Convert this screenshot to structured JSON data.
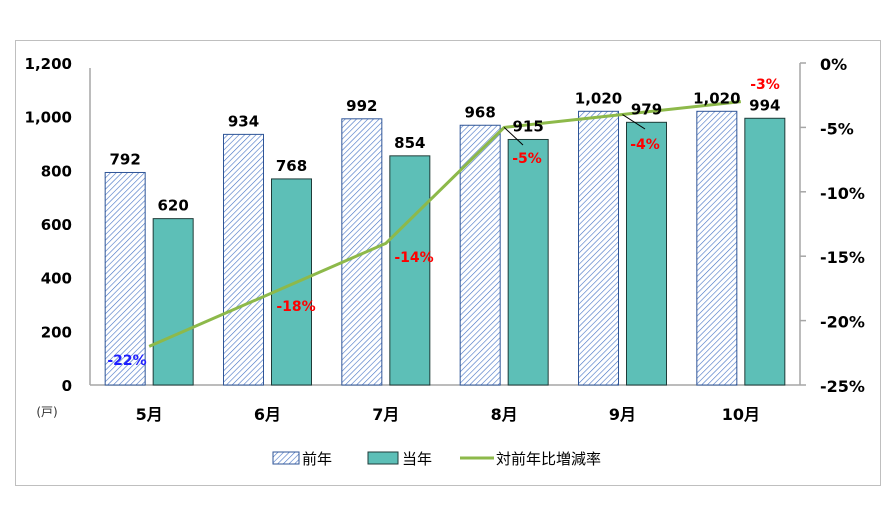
{
  "chart_data": {
    "type": "bar",
    "title": "",
    "categories": [
      "5月",
      "6月",
      "7月",
      "8月",
      "9月",
      "10月"
    ],
    "series": [
      {
        "name": "前年",
        "type": "bar",
        "pattern": "hatched",
        "color": "#4472c4",
        "values": [
          792,
          934,
          992,
          968,
          1020,
          1020
        ],
        "labels": [
          "792",
          "934",
          "992",
          "968",
          "1,020",
          "1,020"
        ]
      },
      {
        "name": "当年",
        "type": "bar",
        "color": "#5dbfb7",
        "values": [
          620,
          768,
          854,
          915,
          979,
          994
        ],
        "labels": [
          "620",
          "768",
          "854",
          "915",
          "979",
          "994"
        ]
      },
      {
        "name": "対前年比増減率",
        "type": "line",
        "axis": "right",
        "color": "#8db94a",
        "values": [
          -22,
          -18,
          -14,
          -5,
          -4,
          -3
        ],
        "labels": [
          "-22%",
          "-18%",
          "-14%",
          "-5%",
          "-4%",
          "-3%"
        ],
        "label_colors": [
          "#1f1fff",
          "#ff0000",
          "#ff0000",
          "#ff0000",
          "#ff0000",
          "#ff0000"
        ]
      }
    ],
    "ylabel": "(戸)",
    "ylim": [
      0,
      1200
    ],
    "yticks": [
      "0",
      "200",
      "400",
      "600",
      "800",
      "1,000",
      "1,200"
    ],
    "y2lim": [
      -25,
      0
    ],
    "y2ticks": [
      "-25%",
      "-20%",
      "-15%",
      "-10%",
      "-5%",
      "0%"
    ],
    "legend_position": "bottom",
    "grid": false
  }
}
